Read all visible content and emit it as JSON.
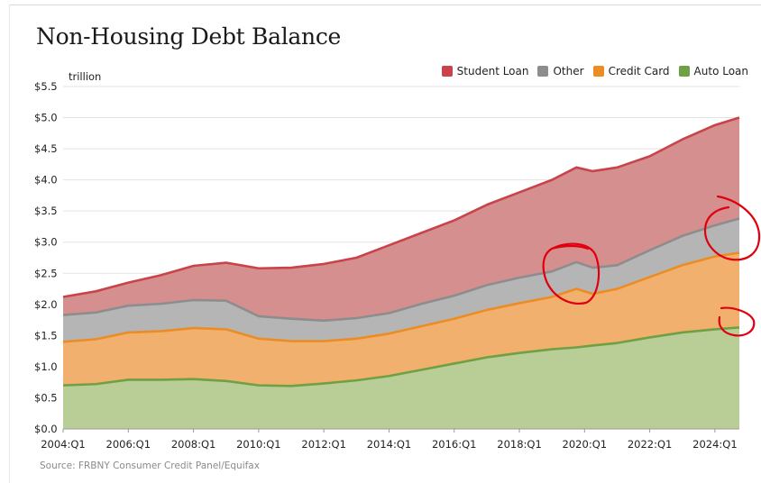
{
  "title": "Non-Housing Debt Balance",
  "source": "Source: FRBNY Consumer Credit Panel/Equifax",
  "unit_label": "trillion",
  "colors": {
    "student_loan_fill": "#d68f8f",
    "student_loan_line": "#c8444a",
    "other_fill": "#b5b5b5",
    "other_line": "#8d8d8d",
    "credit_card_fill": "#f2b06f",
    "credit_card_line": "#ec8c24",
    "auto_loan_fill": "#b9cd96",
    "auto_loan_line": "#6fa043",
    "annotation": "#e0000e"
  },
  "legend": [
    {
      "name": "Student Loan",
      "color": "#c8444a"
    },
    {
      "name": "Other",
      "color": "#8d8d8d"
    },
    {
      "name": "Credit Card",
      "color": "#ec8c24"
    },
    {
      "name": "Auto Loan",
      "color": "#6fa043"
    }
  ],
  "chart_data": {
    "type": "area",
    "stacked": true,
    "title": "Non-Housing Debt Balance",
    "ylabel": "trillion",
    "ylim": [
      0,
      5.5
    ],
    "y_ticks": [
      "$0.0",
      "$0.5",
      "$1.0",
      "$1.5",
      "$2.0",
      "$2.5",
      "$3.0",
      "$3.5",
      "$4.0",
      "$4.5",
      "$5.0",
      "$5.5"
    ],
    "x_ticks": [
      "2004:Q1",
      "2006:Q1",
      "2008:Q1",
      "2010:Q1",
      "2012:Q1",
      "2014:Q1",
      "2016:Q1",
      "2018:Q1",
      "2020:Q1",
      "2022:Q1",
      "2024:Q1"
    ],
    "grid": true,
    "legend_position": "top-right",
    "x": [
      2004.0,
      2005.0,
      2006.0,
      2007.0,
      2008.0,
      2009.0,
      2010.0,
      2011.0,
      2012.0,
      2013.0,
      2014.0,
      2015.0,
      2016.0,
      2017.0,
      2018.0,
      2019.0,
      2019.75,
      2020.25,
      2021.0,
      2022.0,
      2023.0,
      2024.0,
      2024.75
    ],
    "series": [
      {
        "name": "Auto Loan",
        "cumulative": [
          0.7,
          0.72,
          0.79,
          0.79,
          0.8,
          0.77,
          0.7,
          0.69,
          0.73,
          0.78,
          0.85,
          0.95,
          1.05,
          1.15,
          1.22,
          1.28,
          1.31,
          1.34,
          1.38,
          1.47,
          1.55,
          1.6,
          1.63
        ]
      },
      {
        "name": "Credit Card",
        "cumulative": [
          1.4,
          1.44,
          1.55,
          1.57,
          1.62,
          1.6,
          1.45,
          1.41,
          1.41,
          1.45,
          1.53,
          1.65,
          1.77,
          1.91,
          2.02,
          2.12,
          2.25,
          2.17,
          2.25,
          2.44,
          2.63,
          2.77,
          2.83
        ]
      },
      {
        "name": "Other",
        "cumulative": [
          1.83,
          1.87,
          1.98,
          2.01,
          2.07,
          2.06,
          1.81,
          1.77,
          1.74,
          1.78,
          1.86,
          2.01,
          2.14,
          2.31,
          2.43,
          2.53,
          2.68,
          2.59,
          2.63,
          2.87,
          3.1,
          3.27,
          3.38
        ]
      },
      {
        "name": "Student Loan",
        "cumulative": [
          2.12,
          2.21,
          2.35,
          2.47,
          2.62,
          2.67,
          2.58,
          2.59,
          2.65,
          2.75,
          2.95,
          3.15,
          3.35,
          3.6,
          3.8,
          4.0,
          4.2,
          4.14,
          4.2,
          4.38,
          4.65,
          4.88,
          5.0
        ]
      }
    ]
  }
}
